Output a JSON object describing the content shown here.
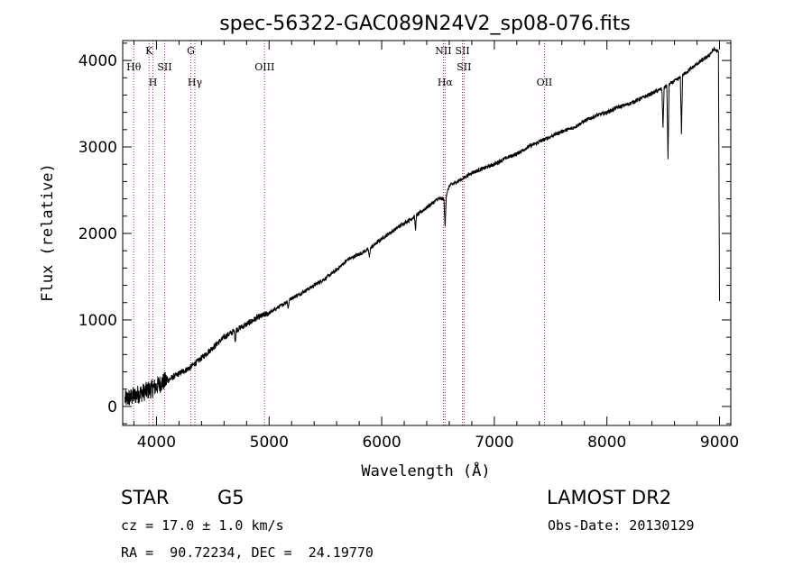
{
  "chart_data": {
    "type": "line",
    "title": "spec-56322-GAC089N24V2_sp08-076.fits",
    "xlabel": "Wavelength (Å)",
    "ylabel": "Flux (relative)",
    "xlim": [
      3700,
      9100
    ],
    "ylim": [
      -220,
      4230
    ],
    "xticks": [
      4000,
      5000,
      6000,
      7000,
      8000,
      9000
    ],
    "yticks": [
      0,
      1000,
      2000,
      3000,
      4000
    ],
    "grid": false,
    "line_color": "#000000",
    "marker_color": "#b03030",
    "spectral_lines": [
      {
        "label": "Hθ",
        "wavelength": 3798,
        "row": 0
      },
      {
        "label": "K",
        "wavelength": 3934,
        "row": -1
      },
      {
        "label": "H",
        "wavelength": 3969,
        "row": 1
      },
      {
        "label": "SII",
        "wavelength": 4072,
        "row": 0
      },
      {
        "label": "G",
        "wavelength": 4305,
        "row": -1
      },
      {
        "label": "Hγ",
        "wavelength": 4341,
        "row": 1
      },
      {
        "label": "OIII",
        "wavelength": 4960,
        "row": 0
      },
      {
        "label": "NII",
        "wavelength": 6548,
        "row": -1
      },
      {
        "label": "Hα",
        "wavelength": 6563,
        "row": 1
      },
      {
        "label": "SII",
        "wavelength": 6717,
        "row": -1
      },
      {
        "label": "SII",
        "wavelength": 6731,
        "row": 0
      },
      {
        "label": "OII",
        "wavelength": 7445,
        "row": 1
      }
    ],
    "series": [
      {
        "x": [
          3720,
          3760,
          3800,
          3850,
          3900,
          3950,
          4000,
          4050,
          4100,
          4200,
          4300,
          4400,
          4500,
          4600,
          4700,
          4800,
          4900,
          5000,
          5100,
          5200,
          5300,
          5400,
          5500,
          5600,
          5700,
          5800,
          5900,
          6000,
          6100,
          6200,
          6300,
          6400,
          6500,
          6563,
          6600,
          6700,
          6800,
          6900,
          7000,
          7100,
          7200,
          7300,
          7400,
          7500,
          7600,
          7700,
          7800,
          7900,
          8000,
          8100,
          8200,
          8300,
          8400,
          8500,
          8550,
          8600,
          8650,
          8700,
          8800,
          8900,
          8950,
          8990,
          9000
        ],
        "y": [
          80,
          100,
          120,
          150,
          170,
          200,
          230,
          280,
          300,
          380,
          450,
          560,
          680,
          800,
          880,
          950,
          1030,
          1080,
          1160,
          1250,
          1320,
          1400,
          1480,
          1580,
          1700,
          1760,
          1830,
          1940,
          2030,
          2120,
          2200,
          2300,
          2400,
          2400,
          2550,
          2620,
          2700,
          2750,
          2800,
          2870,
          2920,
          3000,
          3060,
          3120,
          3180,
          3220,
          3300,
          3360,
          3400,
          3460,
          3500,
          3560,
          3620,
          3680,
          3720,
          3760,
          3800,
          3860,
          3960,
          4050,
          4130,
          4100,
          1200
        ]
      }
    ],
    "absorption_features": [
      {
        "x": 6563,
        "depth": 350
      },
      {
        "x": 6300,
        "depth": 150
      },
      {
        "x": 8498,
        "depth": 450
      },
      {
        "x": 8542,
        "depth": 850
      },
      {
        "x": 8662,
        "depth": 650
      },
      {
        "x": 5890,
        "depth": 100
      },
      {
        "x": 5170,
        "depth": 90
      },
      {
        "x": 4700,
        "depth": 120
      }
    ]
  },
  "info": {
    "object_type": "STAR",
    "subclass": "G5",
    "survey": "LAMOST DR2",
    "cz": "cz = 17.0 ± 1.0 km/s",
    "obs_date": "Obs-Date: 20130129",
    "coords": "RA =  90.72234, DEC =  24.19770"
  }
}
